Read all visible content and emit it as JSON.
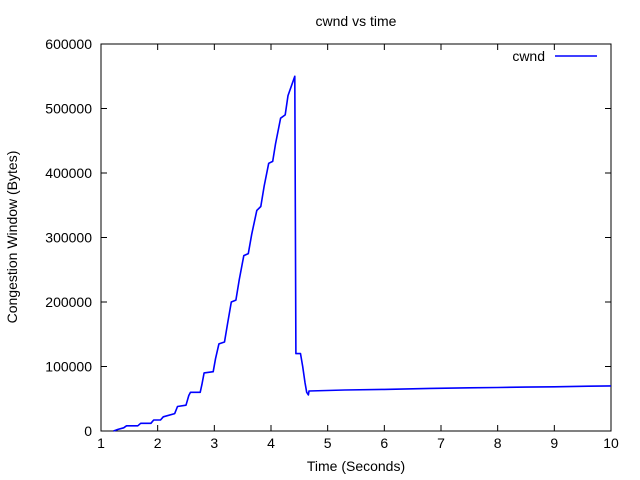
{
  "chart_data": {
    "type": "line",
    "title": "cwnd vs time",
    "xlabel": "Time (Seconds)",
    "ylabel": "Congestion Window (Bytes)",
    "xlim": [
      1,
      10
    ],
    "ylim": [
      0,
      600000
    ],
    "x_ticks": [
      1,
      2,
      3,
      4,
      5,
      6,
      7,
      8,
      9,
      10
    ],
    "y_ticks": [
      0,
      100000,
      200000,
      300000,
      400000,
      500000,
      600000
    ],
    "grid": false,
    "legend_position": "top-right",
    "series": [
      {
        "name": "cwnd",
        "color": "#0000ff",
        "points": [
          [
            1.22,
            0
          ],
          [
            1.3,
            2500
          ],
          [
            1.4,
            5000
          ],
          [
            1.45,
            8000
          ],
          [
            1.65,
            8000
          ],
          [
            1.7,
            12000
          ],
          [
            1.88,
            12000
          ],
          [
            1.93,
            17000
          ],
          [
            2.05,
            17000
          ],
          [
            2.1,
            22000
          ],
          [
            2.3,
            27000
          ],
          [
            2.35,
            38000
          ],
          [
            2.5,
            40000
          ],
          [
            2.55,
            55000
          ],
          [
            2.58,
            60000
          ],
          [
            2.75,
            60000
          ],
          [
            2.78,
            72000
          ],
          [
            2.82,
            90000
          ],
          [
            2.98,
            92000
          ],
          [
            3.02,
            112000
          ],
          [
            3.08,
            135000
          ],
          [
            3.18,
            138000
          ],
          [
            3.23,
            165000
          ],
          [
            3.3,
            200000
          ],
          [
            3.38,
            203000
          ],
          [
            3.44,
            235000
          ],
          [
            3.52,
            272000
          ],
          [
            3.6,
            275000
          ],
          [
            3.66,
            305000
          ],
          [
            3.75,
            342000
          ],
          [
            3.82,
            348000
          ],
          [
            3.88,
            380000
          ],
          [
            3.96,
            415000
          ],
          [
            4.03,
            418000
          ],
          [
            4.08,
            445000
          ],
          [
            4.17,
            485000
          ],
          [
            4.25,
            490000
          ],
          [
            4.3,
            520000
          ],
          [
            4.42,
            550000
          ],
          [
            4.44,
            120000
          ],
          [
            4.52,
            120000
          ],
          [
            4.56,
            100000
          ],
          [
            4.6,
            75000
          ],
          [
            4.63,
            60000
          ],
          [
            4.66,
            56000
          ],
          [
            4.67,
            62000
          ],
          [
            5.3,
            63500
          ],
          [
            6.0,
            64500
          ],
          [
            6.8,
            66000
          ],
          [
            7.5,
            67000
          ],
          [
            8.0,
            67500
          ],
          [
            8.5,
            68000
          ],
          [
            9.0,
            68500
          ],
          [
            9.6,
            69500
          ],
          [
            10.0,
            70000
          ]
        ]
      }
    ]
  }
}
